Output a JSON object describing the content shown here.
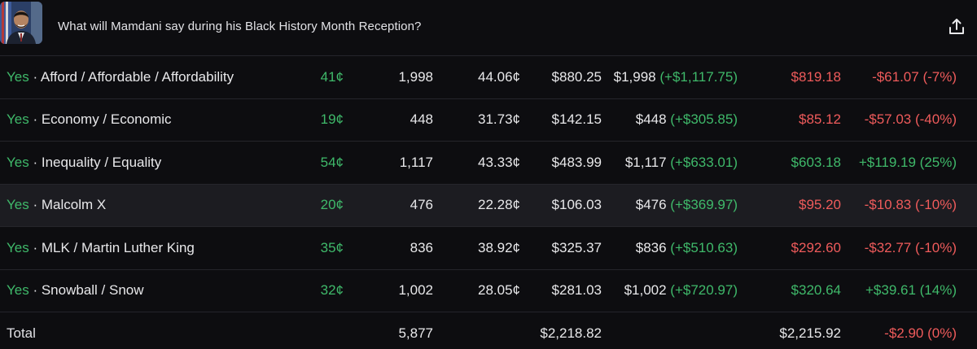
{
  "header": {
    "title": "What will Mamdani say during his Black History Month Reception?"
  },
  "colors": {
    "positive": "#3fb96a",
    "negative": "#ef5b5b",
    "background": "#0d0d10"
  },
  "rows": [
    {
      "outcome": "Yes",
      "name": "Afford / Affordable / Affordability",
      "price": "41¢",
      "shares": "1,998",
      "avg": "44.06¢",
      "cost": "$880.25",
      "payout": "$1,998",
      "payout_gain": "(+$1,117.75)",
      "value": "$819.18",
      "value_sign": "neg",
      "pnl": "-$61.07 (-7%)",
      "pnl_sign": "neg"
    },
    {
      "outcome": "Yes",
      "name": "Economy / Economic",
      "price": "19¢",
      "shares": "448",
      "avg": "31.73¢",
      "cost": "$142.15",
      "payout": "$448",
      "payout_gain": "(+$305.85)",
      "value": "$85.12",
      "value_sign": "neg",
      "pnl": "-$57.03 (-40%)",
      "pnl_sign": "neg"
    },
    {
      "outcome": "Yes",
      "name": "Inequality / Equality",
      "price": "54¢",
      "shares": "1,117",
      "avg": "43.33¢",
      "cost": "$483.99",
      "payout": "$1,117",
      "payout_gain": "(+$633.01)",
      "value": "$603.18",
      "value_sign": "pos",
      "pnl": "+$119.19 (25%)",
      "pnl_sign": "pos"
    },
    {
      "outcome": "Yes",
      "name": "Malcolm X",
      "price": "20¢",
      "shares": "476",
      "avg": "22.28¢",
      "cost": "$106.03",
      "payout": "$476",
      "payout_gain": "(+$369.97)",
      "value": "$95.20",
      "value_sign": "neg",
      "pnl": "-$10.83 (-10%)",
      "pnl_sign": "neg",
      "highlight": true
    },
    {
      "outcome": "Yes",
      "name": "MLK / Martin Luther King",
      "price": "35¢",
      "shares": "836",
      "avg": "38.92¢",
      "cost": "$325.37",
      "payout": "$836",
      "payout_gain": "(+$510.63)",
      "value": "$292.60",
      "value_sign": "neg",
      "pnl": "-$32.77 (-10%)",
      "pnl_sign": "neg"
    },
    {
      "outcome": "Yes",
      "name": "Snowball / Snow",
      "price": "32¢",
      "shares": "1,002",
      "avg": "28.05¢",
      "cost": "$281.03",
      "payout": "$1,002",
      "payout_gain": "(+$720.97)",
      "value": "$320.64",
      "value_sign": "pos",
      "pnl": "+$39.61 (14%)",
      "pnl_sign": "pos"
    }
  ],
  "total": {
    "label": "Total",
    "shares": "5,877",
    "cost": "$2,218.82",
    "value": "$2,215.92",
    "pnl": "-$2.90 (0%)"
  }
}
